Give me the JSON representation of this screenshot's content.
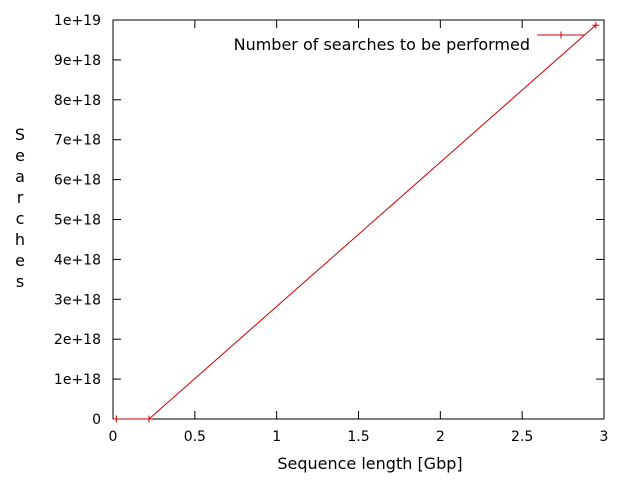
{
  "chart_data": {
    "type": "line",
    "xlabel": "Sequence length [Gbp]",
    "ylabel": "Searches",
    "xlim": [
      0,
      3
    ],
    "ylim": [
      0,
      1e+19
    ],
    "grid": false,
    "legend_position": "top-right",
    "xticks": [
      {
        "value": 0,
        "label": "0"
      },
      {
        "value": 0.5,
        "label": "0.5"
      },
      {
        "value": 1,
        "label": "1"
      },
      {
        "value": 1.5,
        "label": "1.5"
      },
      {
        "value": 2,
        "label": "2"
      },
      {
        "value": 2.5,
        "label": "2.5"
      },
      {
        "value": 3,
        "label": "3"
      }
    ],
    "yticks": [
      {
        "value": 0,
        "label": "0"
      },
      {
        "value": 1e+18,
        "label": "1e+18"
      },
      {
        "value": 2e+18,
        "label": "2e+18"
      },
      {
        "value": 3e+18,
        "label": "3e+18"
      },
      {
        "value": 4e+18,
        "label": "4e+18"
      },
      {
        "value": 5e+18,
        "label": "5e+18"
      },
      {
        "value": 6e+18,
        "label": "6e+18"
      },
      {
        "value": 7e+18,
        "label": "7e+18"
      },
      {
        "value": 8e+18,
        "label": "8e+18"
      },
      {
        "value": 9e+18,
        "label": "9e+18"
      },
      {
        "value": 1e+19,
        "label": "1e+19"
      }
    ],
    "series": [
      {
        "name": "Number of searches to be performed",
        "color": "#cc0000",
        "marker": "plus",
        "points": [
          {
            "x": 0.02,
            "y": 0
          },
          {
            "x": 0.22,
            "y": 0
          },
          {
            "x": 2.95,
            "y": 9.87e+18
          }
        ]
      }
    ]
  }
}
